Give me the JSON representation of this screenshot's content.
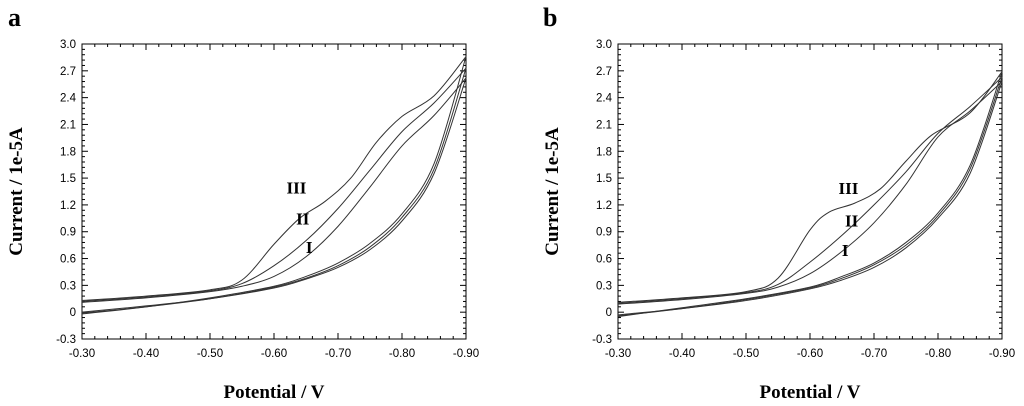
{
  "chart_data": [
    {
      "type": "line",
      "panel_label": "a",
      "xlabel": "Potential / V",
      "ylabel": "Current / 1e-5A",
      "xlim": [
        -0.3,
        -0.9
      ],
      "ylim": [
        -0.3,
        3.0
      ],
      "x_ticks": [
        "-0.30",
        "-0.40",
        "-0.50",
        "-0.60",
        "-0.70",
        "-0.80",
        "-0.90"
      ],
      "y_ticks": [
        "-0.3",
        "0",
        "0.3",
        "0.6",
        "0.9",
        "1.2",
        "1.5",
        "1.8",
        "2.1",
        "2.4",
        "2.7",
        "3.0"
      ],
      "annotations": [
        {
          "text": "III",
          "x": -0.635,
          "y": 1.33
        },
        {
          "text": "II",
          "x": -0.645,
          "y": 0.98
        },
        {
          "text": "I",
          "x": -0.655,
          "y": 0.66
        }
      ],
      "series": [
        {
          "name": "I forward",
          "points": [
            [
              -0.3,
              0.11
            ],
            [
              -0.4,
              0.16
            ],
            [
              -0.5,
              0.23
            ],
            [
              -0.55,
              0.29
            ],
            [
              -0.6,
              0.4
            ],
            [
              -0.65,
              0.62
            ],
            [
              -0.7,
              0.96
            ],
            [
              -0.75,
              1.4
            ],
            [
              -0.8,
              1.86
            ],
            [
              -0.85,
              2.2
            ],
            [
              -0.9,
              2.62
            ]
          ]
        },
        {
          "name": "II forward",
          "points": [
            [
              -0.3,
              0.12
            ],
            [
              -0.4,
              0.17
            ],
            [
              -0.5,
              0.24
            ],
            [
              -0.55,
              0.32
            ],
            [
              -0.6,
              0.52
            ],
            [
              -0.65,
              0.8
            ],
            [
              -0.7,
              1.16
            ],
            [
              -0.75,
              1.59
            ],
            [
              -0.8,
              2.02
            ],
            [
              -0.85,
              2.34
            ],
            [
              -0.9,
              2.73
            ]
          ]
        },
        {
          "name": "III forward",
          "points": [
            [
              -0.3,
              0.13
            ],
            [
              -0.4,
              0.18
            ],
            [
              -0.5,
              0.25
            ],
            [
              -0.55,
              0.36
            ],
            [
              -0.6,
              0.76
            ],
            [
              -0.64,
              1.05
            ],
            [
              -0.68,
              1.24
            ],
            [
              -0.72,
              1.5
            ],
            [
              -0.76,
              1.9
            ],
            [
              -0.8,
              2.19
            ],
            [
              -0.85,
              2.42
            ],
            [
              -0.9,
              2.86
            ]
          ]
        },
        {
          "name": "I return",
          "points": [
            [
              -0.9,
              2.62
            ],
            [
              -0.85,
              1.55
            ],
            [
              -0.8,
              1.02
            ],
            [
              -0.75,
              0.7
            ],
            [
              -0.7,
              0.5
            ],
            [
              -0.65,
              0.37
            ],
            [
              -0.6,
              0.27
            ],
            [
              -0.5,
              0.15
            ],
            [
              -0.4,
              0.07
            ],
            [
              -0.3,
              0.0
            ]
          ]
        },
        {
          "name": "II return",
          "points": [
            [
              -0.9,
              2.73
            ],
            [
              -0.85,
              1.6
            ],
            [
              -0.8,
              1.06
            ],
            [
              -0.75,
              0.73
            ],
            [
              -0.7,
              0.52
            ],
            [
              -0.65,
              0.38
            ],
            [
              -0.6,
              0.28
            ],
            [
              -0.5,
              0.15
            ],
            [
              -0.4,
              0.06
            ],
            [
              -0.3,
              -0.01
            ]
          ]
        },
        {
          "name": "III return",
          "points": [
            [
              -0.9,
              2.86
            ],
            [
              -0.85,
              1.66
            ],
            [
              -0.8,
              1.1
            ],
            [
              -0.75,
              0.77
            ],
            [
              -0.7,
              0.55
            ],
            [
              -0.65,
              0.4
            ],
            [
              -0.6,
              0.29
            ],
            [
              -0.5,
              0.16
            ],
            [
              -0.4,
              0.06
            ],
            [
              -0.3,
              -0.02
            ]
          ]
        }
      ]
    },
    {
      "type": "line",
      "panel_label": "b",
      "xlabel": "Potential / V",
      "ylabel": "Current / 1e-5A",
      "xlim": [
        -0.3,
        -0.9
      ],
      "ylim": [
        -0.3,
        3.0
      ],
      "x_ticks": [
        "-0.30",
        "-0.40",
        "-0.50",
        "-0.60",
        "-0.70",
        "-0.80",
        "-0.90"
      ],
      "y_ticks": [
        "-0.3",
        "0",
        "0.3",
        "0.6",
        "0.9",
        "1.2",
        "1.5",
        "1.8",
        "2.1",
        "2.4",
        "2.7",
        "3.0"
      ],
      "annotations": [
        {
          "text": "III",
          "x": -0.66,
          "y": 1.32
        },
        {
          "text": "II",
          "x": -0.665,
          "y": 0.96
        },
        {
          "text": "I",
          "x": -0.655,
          "y": 0.63
        }
      ],
      "series": [
        {
          "name": "I forward",
          "points": [
            [
              -0.3,
              0.09
            ],
            [
              -0.4,
              0.14
            ],
            [
              -0.5,
              0.21
            ],
            [
              -0.55,
              0.28
            ],
            [
              -0.6,
              0.43
            ],
            [
              -0.65,
              0.68
            ],
            [
              -0.7,
              1.0
            ],
            [
              -0.75,
              1.43
            ],
            [
              -0.8,
              1.96
            ],
            [
              -0.85,
              2.25
            ],
            [
              -0.9,
              2.58
            ]
          ]
        },
        {
          "name": "II forward",
          "points": [
            [
              -0.3,
              0.1
            ],
            [
              -0.4,
              0.15
            ],
            [
              -0.5,
              0.22
            ],
            [
              -0.55,
              0.31
            ],
            [
              -0.6,
              0.56
            ],
            [
              -0.65,
              0.86
            ],
            [
              -0.7,
              1.2
            ],
            [
              -0.75,
              1.57
            ],
            [
              -0.8,
              2.0
            ],
            [
              -0.85,
              2.3
            ],
            [
              -0.9,
              2.63
            ]
          ]
        },
        {
          "name": "III forward",
          "points": [
            [
              -0.3,
              0.11
            ],
            [
              -0.4,
              0.16
            ],
            [
              -0.5,
              0.23
            ],
            [
              -0.55,
              0.38
            ],
            [
              -0.6,
              0.92
            ],
            [
              -0.63,
              1.12
            ],
            [
              -0.67,
              1.22
            ],
            [
              -0.71,
              1.38
            ],
            [
              -0.75,
              1.69
            ],
            [
              -0.79,
              1.98
            ],
            [
              -0.85,
              2.23
            ],
            [
              -0.9,
              2.69
            ]
          ]
        },
        {
          "name": "I return",
          "points": [
            [
              -0.9,
              2.58
            ],
            [
              -0.85,
              1.55
            ],
            [
              -0.8,
              1.05
            ],
            [
              -0.75,
              0.72
            ],
            [
              -0.7,
              0.5
            ],
            [
              -0.65,
              0.36
            ],
            [
              -0.6,
              0.26
            ],
            [
              -0.5,
              0.13
            ],
            [
              -0.4,
              0.04
            ],
            [
              -0.3,
              -0.03
            ]
          ]
        },
        {
          "name": "II return",
          "points": [
            [
              -0.9,
              2.63
            ],
            [
              -0.85,
              1.6
            ],
            [
              -0.8,
              1.08
            ],
            [
              -0.75,
              0.75
            ],
            [
              -0.7,
              0.53
            ],
            [
              -0.65,
              0.38
            ],
            [
              -0.6,
              0.27
            ],
            [
              -0.5,
              0.14
            ],
            [
              -0.4,
              0.04
            ],
            [
              -0.3,
              -0.04
            ]
          ]
        },
        {
          "name": "III return",
          "points": [
            [
              -0.9,
              2.69
            ],
            [
              -0.85,
              1.64
            ],
            [
              -0.8,
              1.11
            ],
            [
              -0.75,
              0.78
            ],
            [
              -0.7,
              0.55
            ],
            [
              -0.65,
              0.4
            ],
            [
              -0.6,
              0.28
            ],
            [
              -0.5,
              0.15
            ],
            [
              -0.4,
              0.05
            ],
            [
              -0.3,
              -0.05
            ]
          ]
        }
      ]
    }
  ]
}
